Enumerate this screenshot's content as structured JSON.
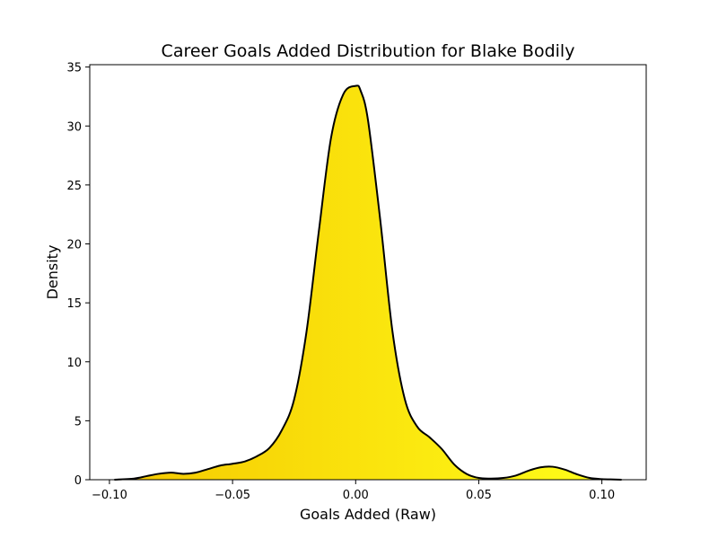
{
  "chart_data": {
    "type": "area",
    "title": "Career Goals Added Distribution for Blake Bodily",
    "xlabel": "Goals Added (Raw)",
    "ylabel": "Density",
    "xlim": [
      -0.108,
      0.118
    ],
    "ylim": [
      0,
      35.2
    ],
    "x_ticks": [
      -0.1,
      -0.05,
      0.0,
      0.05,
      0.1
    ],
    "x_tick_labels": [
      "−0.10",
      "−0.05",
      "0.00",
      "0.05",
      "0.10"
    ],
    "y_ticks": [
      0,
      5,
      10,
      15,
      20,
      25,
      30,
      35
    ],
    "y_tick_labels": [
      "0",
      "5",
      "10",
      "15",
      "20",
      "25",
      "30",
      "35"
    ],
    "grid": false,
    "legend": false,
    "colors": {
      "fill_gradient_start": "#f5c800",
      "fill_gradient_end": "#ffff1a",
      "line": "#000000"
    },
    "series": [
      {
        "x": [
          -0.098,
          -0.09,
          -0.085,
          -0.08,
          -0.075,
          -0.07,
          -0.065,
          -0.06,
          -0.055,
          -0.05,
          -0.045,
          -0.04,
          -0.035,
          -0.03,
          -0.025,
          -0.02,
          -0.015,
          -0.01,
          -0.005,
          0.0,
          0.002,
          0.005,
          0.01,
          0.015,
          0.02,
          0.025,
          0.03,
          0.035,
          0.04,
          0.045,
          0.05,
          0.055,
          0.06,
          0.065,
          0.07,
          0.075,
          0.08,
          0.085,
          0.09,
          0.095,
          0.1,
          0.105,
          0.108
        ],
        "y": [
          0.0,
          0.1,
          0.3,
          0.5,
          0.6,
          0.5,
          0.6,
          0.9,
          1.2,
          1.35,
          1.55,
          2.0,
          2.7,
          4.2,
          6.8,
          12.5,
          21.0,
          29.0,
          32.7,
          33.4,
          33.0,
          30.5,
          22.0,
          12.5,
          6.8,
          4.5,
          3.6,
          2.6,
          1.3,
          0.5,
          0.15,
          0.1,
          0.15,
          0.35,
          0.75,
          1.05,
          1.1,
          0.85,
          0.45,
          0.15,
          0.05,
          0.02,
          0.0
        ]
      }
    ]
  }
}
